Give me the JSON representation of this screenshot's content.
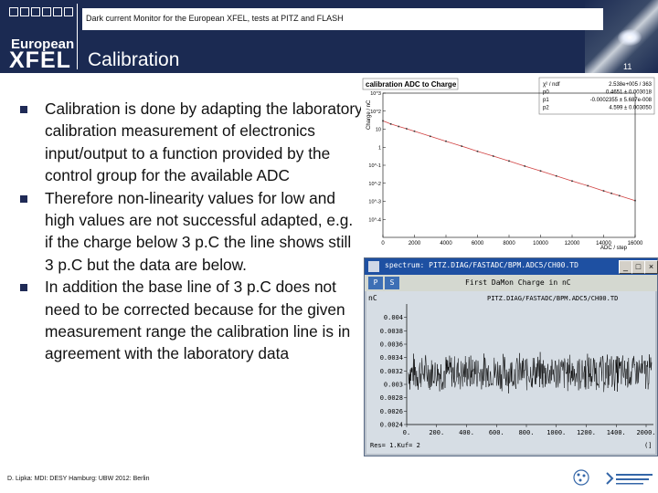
{
  "header": {
    "top_line": "Dark current Monitor for the European XFEL, tests at PITZ and FLASH",
    "logo_line1": "European",
    "logo_line2": "XFEL",
    "title": "Calibration",
    "page_number": "11"
  },
  "bullets": [
    "Calibration is done by adapting the laboratory calibration measurement of electronics input/output to a function provided by the control group for the available ADC",
    "Therefore non-linearity values for low and high values are not successful adapted, e.g. if the charge below 3 p.C the line shows still 3 p.C but the data are below.",
    "In addition the base line of 3 p.C does not need to be corrected because for the given measurement range the calibration line is in agreement with the laboratory data"
  ],
  "footer": {
    "text": "D. Lipka: MDI: DESY Hamburg: UBW 2012: Berlin"
  },
  "colors": {
    "header_bg": "#1b2a52",
    "bullet_marker": "#1f2a56",
    "window_title": "#1e50a2",
    "fit_line": "#d04040"
  },
  "chart_data": [
    {
      "type": "scatter",
      "title": "calibration ADC to Charge",
      "ylabel": "Charge / nC",
      "xlabel": "ADC / step",
      "yscale": "log",
      "xlim": [
        0,
        16000
      ],
      "ylim": [
        0.0001,
        100
      ],
      "x_ticks": [
        "0",
        "2000",
        "4000",
        "6000",
        "8000",
        "10000",
        "12000",
        "14000",
        "16000"
      ],
      "y_ticks": [
        "10^-4",
        "10^-3",
        "10^-2",
        "10^-1",
        "1",
        "10",
        "10^2",
        "10^3"
      ],
      "stats": [
        {
          "name": "χ² / ndf",
          "value": "2.538e+005 / 363"
        },
        {
          "name": "p0",
          "value": "0.4651 ± 0.003018"
        },
        {
          "name": "p1",
          "value": "-0.0002355 ± 5.687e-008"
        },
        {
          "name": "p2",
          "value": "4.599 ± 0.003050"
        }
      ],
      "series": [
        {
          "x": [
            0,
            500,
            1000,
            1500,
            2000,
            3000,
            4000,
            5000,
            6000,
            7000,
            8000,
            9000,
            10000,
            11000,
            12000,
            13000,
            14000,
            14500,
            15000,
            16000
          ],
          "values": [
            7,
            5.2,
            4.1,
            3.3,
            2.6,
            1.6,
            1.0,
            0.62,
            0.38,
            0.24,
            0.15,
            0.092,
            0.058,
            0.036,
            0.022,
            0.014,
            0.0086,
            0.0068,
            0.0054,
            0.0034
          ]
        }
      ]
    },
    {
      "type": "line",
      "window_title": "spectrum: PITZ.DIAG/FASTADC/BPM.ADC5/CH00.TD",
      "title": "First DaMon Charge in nC",
      "channel": "PITZ.DIAG/FASTADC/BPM.ADC5/CH00.TD",
      "ylabel": "nC",
      "ylim": [
        0.0024,
        0.0042
      ],
      "y_ticks": [
        "0.004",
        "0.0038",
        "0.0036",
        "0.0034",
        "0.0032",
        "0.003",
        "0.0028",
        "0.0026",
        "0.0024"
      ],
      "x_ticks": [
        "0.",
        "200.",
        "400.",
        "600.",
        "800.",
        "1000.",
        "1200.",
        "1400.",
        "2000."
      ],
      "xlim": [
        0,
        2000
      ],
      "mean": 0.00318,
      "noise_amplitude": 0.00032,
      "status": "Res= 1.Kuf= 2",
      "menu_tabs": [
        "P",
        "S"
      ],
      "bracket_text": "(]"
    }
  ]
}
